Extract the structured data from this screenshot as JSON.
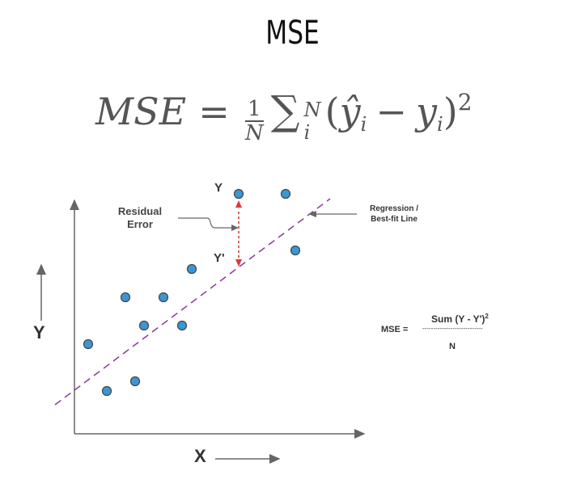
{
  "title": "MSE",
  "formula": {
    "lhs": "MSE",
    "equals": "=",
    "frac_num": "1",
    "frac_den": "N",
    "sum": "∑",
    "sum_upper": "N",
    "sum_lower": "i",
    "body_open": "(",
    "yhat": "ŷ",
    "yhat_sub": "i",
    "minus": "−",
    "y": "y",
    "y_sub": "i",
    "body_close": ")",
    "power": "2"
  },
  "diagram": {
    "y_axis_label": "Y",
    "x_axis_label": "X",
    "point_label_y": "Y",
    "point_label_yprime": "Y'",
    "residual_label_line1": "Residual",
    "residual_label_line2": "Error",
    "regression_label_line1": "Regression /",
    "regression_label_line2": "Best-fit Line",
    "colors": {
      "point_fill": "#3a97d4",
      "point_stroke": "#444444",
      "regression_line": "#8e3a9e",
      "residual_arrow": "#d93b3b",
      "axis": "#666666"
    }
  },
  "side_formula": {
    "lhs": "MSE =",
    "numerator": "Sum (Y - Y')",
    "numerator_power": "2",
    "divider": "----------------------------",
    "denominator": "N"
  }
}
